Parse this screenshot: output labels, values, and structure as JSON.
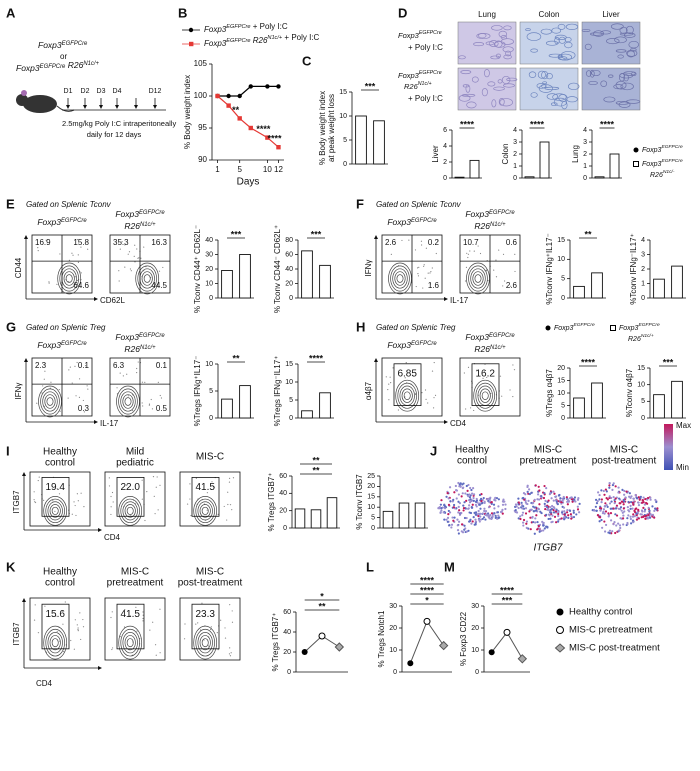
{
  "genotypes": {
    "foxp3": {
      "gene": "Foxp3",
      "sup": "EGFPCre"
    },
    "r26": {
      "gene": "R26",
      "sup": "N1c/+"
    },
    "r26b": {
      "gene": "R26",
      "sup": "N1c/-"
    }
  },
  "A": {
    "letter": "A",
    "or": "or",
    "days": [
      "D1",
      "D2",
      "D3",
      "D4",
      "D12"
    ],
    "protocol": [
      "2.5mg/kg Poly I:C intraperitoneally",
      "daily for 12 days"
    ]
  },
  "B": {
    "letter": "B",
    "legend_suffix": "+ Poly I:C",
    "ylabel": "% Body weight index",
    "xlabel": "Days",
    "xlim": [
      0,
      13
    ],
    "xticks": [
      1,
      5,
      10,
      12
    ],
    "ylim": [
      90,
      105
    ],
    "yticks": [
      90,
      95,
      100,
      105
    ],
    "x": [
      1,
      3,
      5,
      7,
      10,
      12
    ],
    "series": [
      {
        "color": "#000000",
        "values": [
          100,
          100,
          100,
          101.5,
          101.5,
          101.5
        ]
      },
      {
        "color": "#e53935",
        "values": [
          100,
          98.5,
          96.5,
          95,
          93.5,
          92
        ]
      }
    ],
    "stars": [
      "**",
      "****",
      "****"
    ]
  },
  "C": {
    "letter": "C",
    "ylabel": [
      "% Body weight index",
      "at peak weight loss"
    ],
    "ylim": [
      0,
      15
    ],
    "yticks": [
      0,
      5,
      10,
      15
    ],
    "values": [
      10,
      9
    ],
    "stars": [
      "***"
    ]
  },
  "D": {
    "letter": "D",
    "columns": [
      "Lung",
      "Colon",
      "Liver"
    ],
    "row_suffix": "+ Poly I:C",
    "plots": [
      {
        "ylabel": "Liver",
        "ylim": [
          0,
          6
        ],
        "yticks": [
          0,
          2,
          4,
          6
        ],
        "values": [
          0.1,
          2.2
        ],
        "stars": [
          "****"
        ]
      },
      {
        "ylabel": "Colon",
        "ylim": [
          0,
          4
        ],
        "yticks": [
          0,
          1,
          2,
          3,
          4
        ],
        "values": [
          0.1,
          3
        ],
        "stars": [
          "****"
        ]
      },
      {
        "ylabel": "Lung",
        "ylim": [
          0,
          4
        ],
        "yticks": [
          0,
          1,
          2,
          3,
          4
        ],
        "values": [
          0.1,
          2
        ],
        "stars": [
          "****"
        ]
      }
    ]
  },
  "E": {
    "letter": "E",
    "gate": "Gated on Splenic Tconv",
    "quadrants": [
      [
        "16.9",
        "15.8",
        "64.6"
      ],
      [
        "35.3",
        "16.3",
        "44.5"
      ]
    ],
    "xaxis": "CD62L",
    "yaxis": "CD44",
    "plots": [
      {
        "ylabel": "% Tconv CD44⁺ CD62L⁻",
        "ylim": [
          0,
          40
        ],
        "yticks": [
          0,
          10,
          20,
          30,
          40
        ],
        "values": [
          19,
          30
        ],
        "stars": [
          "***"
        ]
      },
      {
        "ylabel": "% Tconv CD44⁻ CD62L⁺",
        "ylim": [
          0,
          80
        ],
        "yticks": [
          0,
          20,
          40,
          60,
          80
        ],
        "values": [
          65,
          45
        ],
        "stars": [
          "***"
        ]
      }
    ]
  },
  "F": {
    "letter": "F",
    "gate": "Gated on Splenic Tconv",
    "quadrants": [
      [
        "2.6",
        "0.2",
        "1.6"
      ],
      [
        "10.7",
        "0.6",
        "2.6"
      ]
    ],
    "xaxis": "IL-17",
    "yaxis": "IFNγ",
    "plots": [
      {
        "ylabel": "%Tconv IFNg⁺IL17⁻",
        "ylim": [
          0,
          15
        ],
        "yticks": [
          0,
          5,
          10,
          15
        ],
        "values": [
          3,
          6.5
        ],
        "stars": [
          "**"
        ]
      },
      {
        "ylabel": "%Tconv IFNg⁻IL17⁺",
        "ylim": [
          0,
          4
        ],
        "yticks": [
          0,
          1,
          2,
          3,
          4
        ],
        "values": [
          1.3,
          2.2
        ],
        "stars": []
      }
    ]
  },
  "G": {
    "letter": "G",
    "gate": "Gated on Splenic Treg",
    "quadrants": [
      [
        "2.3",
        "0.1",
        "0.3"
      ],
      [
        "6.3",
        "0.1",
        "0.5"
      ]
    ],
    "xaxis": "IL-17",
    "yaxis": "IFNγ",
    "plots": [
      {
        "ylabel": "%Tregs IFNg⁺IL17⁻",
        "ylim": [
          0,
          10
        ],
        "yticks": [
          0,
          5,
          10
        ],
        "values": [
          3.5,
          6
        ],
        "stars": [
          "**"
        ]
      },
      {
        "ylabel": "%Tregs IFNg⁻IL17⁺",
        "ylim": [
          0,
          15
        ],
        "yticks": [
          0,
          5,
          10,
          15
        ],
        "values": [
          2,
          7
        ],
        "stars": [
          "****"
        ]
      }
    ]
  },
  "H": {
    "letter": "H",
    "gate": "Gated on Splenic Treg",
    "gates": [
      "6.85",
      "16.2"
    ],
    "xaxis": "CD4",
    "yaxis": "α4β7",
    "plots": [
      {
        "ylabel": "%Tregs α4β7",
        "ylim": [
          0,
          20
        ],
        "yticks": [
          0,
          5,
          10,
          15,
          20
        ],
        "values": [
          8,
          14
        ],
        "stars": [
          "****"
        ]
      },
      {
        "ylabel": "%Tconv α4β7",
        "ylim": [
          0,
          15
        ],
        "yticks": [
          0,
          5,
          10,
          15
        ],
        "values": [
          7,
          11
        ],
        "stars": [
          "***"
        ]
      }
    ]
  },
  "I": {
    "letter": "I",
    "groups": [
      [
        "Healthy",
        "control"
      ],
      [
        "Mild",
        "pediatric"
      ],
      [
        "MIS-C"
      ]
    ],
    "gates": [
      "19.4",
      "22.0",
      "41.5"
    ],
    "xaxis": "CD4",
    "yaxis": "ITGB7",
    "plots": [
      {
        "ylabel": "% Tregs ITGB7⁺",
        "ylim": [
          0,
          60
        ],
        "yticks": [
          0,
          20,
          40,
          60
        ],
        "values": [
          22,
          21,
          35
        ],
        "stars": [
          "**",
          "**"
        ]
      },
      {
        "ylabel": "% Tconv ITGB7",
        "ylim": [
          0,
          25
        ],
        "yticks": [
          0,
          5,
          10,
          15,
          20,
          25
        ],
        "values": [
          8,
          12,
          12
        ],
        "stars": []
      }
    ]
  },
  "J": {
    "letter": "J",
    "groups": [
      [
        "Healthy",
        "control"
      ],
      [
        "MIS-C",
        "pretreatment"
      ],
      [
        "MIS-C",
        "post-treatment"
      ]
    ],
    "gene": "ITGB7",
    "scale": [
      "Max",
      "Min"
    ]
  },
  "K": {
    "letter": "K",
    "groups": [
      [
        "Healthy",
        "control"
      ],
      [
        "MIS-C",
        "pretreatment"
      ],
      [
        "MIS-C",
        "post-treatment"
      ]
    ],
    "gates": [
      "15.6",
      "41.5",
      "23.3"
    ],
    "xaxis": "CD4",
    "yaxis": "ITGB7",
    "plot": {
      "ylabel": "% Tregs ITGB7⁺",
      "ylim": [
        0,
        60
      ],
      "yticks": [
        0,
        20,
        40,
        60
      ],
      "values": [
        20,
        36,
        25
      ],
      "stars": [
        "**",
        "*"
      ]
    }
  },
  "L": {
    "letter": "L",
    "plot": {
      "ylabel": "% Tregs Notch1",
      "ylim": [
        0,
        30
      ],
      "yticks": [
        0,
        10,
        20,
        30
      ],
      "values": [
        4,
        23,
        12
      ],
      "stars": [
        "*",
        "****",
        "****"
      ]
    }
  },
  "M": {
    "letter": "M",
    "plot": {
      "ylabel": "% Foxp3 CD22",
      "ylim": [
        0,
        30
      ],
      "yticks": [
        0,
        10,
        20,
        30
      ],
      "values": [
        9,
        18,
        6
      ],
      "stars": [
        "***",
        "****"
      ]
    }
  },
  "legend": [
    "Healthy control",
    "MIS-C pretreatment",
    "MIS-C post-treatment"
  ]
}
